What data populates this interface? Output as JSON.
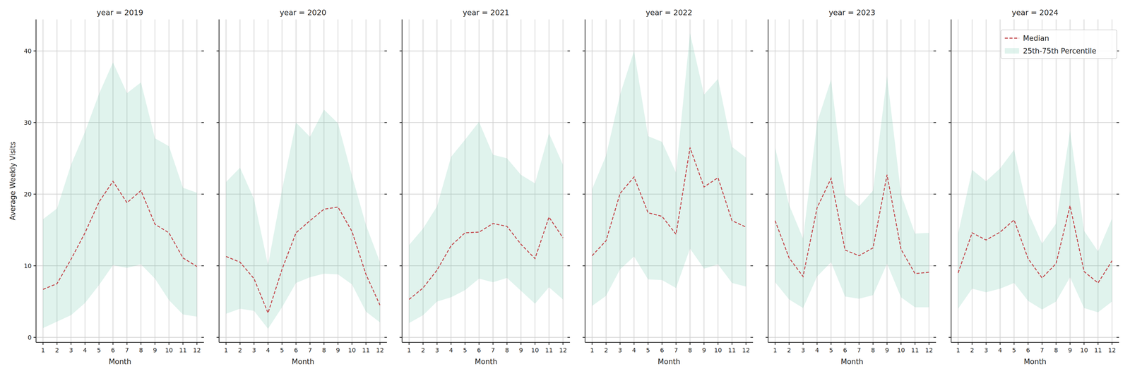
{
  "chart_data": [
    {
      "type": "line",
      "title": "year = 2019",
      "x_label": "Month",
      "y_label": "Average Weekly Visits",
      "x": [
        1,
        2,
        3,
        4,
        5,
        6,
        7,
        8,
        9,
        10,
        11,
        12
      ],
      "xlim": [
        0.5,
        12.5
      ],
      "xticks": [
        1,
        2,
        3,
        4,
        5,
        6,
        7,
        8,
        9,
        10,
        11,
        12
      ],
      "ylim": [
        -0.7,
        44.4
      ],
      "yticks": [
        0,
        10,
        20,
        30,
        40
      ],
      "grid": true,
      "legend": false,
      "series": [
        {
          "name": "Median",
          "type": "line",
          "line_style": "dashed",
          "color": "#c44e52",
          "values": [
            6.7,
            7.5,
            10.9,
            14.6,
            18.9,
            21.8,
            18.8,
            20.5,
            15.8,
            14.6,
            11.1,
            9.9
          ]
        },
        {
          "name": "25th-75th Percentile",
          "type": "area",
          "color": "#66c2a5",
          "lower": [
            1.3,
            2.2,
            3.1,
            4.8,
            7.3,
            10.1,
            9.7,
            10.2,
            8.2,
            5.2,
            3.2,
            2.9
          ],
          "upper": [
            16.5,
            18.0,
            24.1,
            28.7,
            34.0,
            38.4,
            34.1,
            35.6,
            27.8,
            26.7,
            20.9,
            20.2
          ]
        }
      ]
    },
    {
      "type": "line",
      "title": "year = 2020",
      "x_label": "Month",
      "x": [
        1,
        2,
        3,
        4,
        5,
        6,
        7,
        8,
        9,
        10,
        11,
        12
      ],
      "xlim": [
        0.5,
        12.5
      ],
      "xticks": [
        1,
        2,
        3,
        4,
        5,
        6,
        7,
        8,
        9,
        10,
        11,
        12
      ],
      "ylim": [
        -0.7,
        44.4
      ],
      "yticks": [
        0,
        10,
        20,
        30,
        40
      ],
      "grid": true,
      "legend": false,
      "tick_labels": "x",
      "series": [
        {
          "name": "Median",
          "type": "line",
          "line_style": "dashed",
          "color": "#c44e52",
          "values": [
            11.3,
            10.5,
            8.2,
            3.4,
            9.5,
            14.6,
            16.3,
            17.9,
            18.2,
            14.8,
            8.8,
            4.5
          ]
        },
        {
          "name": "25th-75th Percentile",
          "type": "area",
          "color": "#66c2a5",
          "lower": [
            3.3,
            4.0,
            3.7,
            1.2,
            4.2,
            7.6,
            8.4,
            8.9,
            8.8,
            7.4,
            3.6,
            2.1
          ],
          "upper": [
            21.7,
            23.7,
            19.3,
            10.1,
            20.6,
            30.0,
            28.0,
            31.8,
            29.9,
            22.6,
            15.7,
            10.5
          ]
        }
      ]
    },
    {
      "type": "line",
      "title": "year = 2021",
      "x_label": "Month",
      "x": [
        1,
        2,
        3,
        4,
        5,
        6,
        7,
        8,
        9,
        10,
        11,
        12
      ],
      "xlim": [
        0.5,
        12.5
      ],
      "xticks": [
        1,
        2,
        3,
        4,
        5,
        6,
        7,
        8,
        9,
        10,
        11,
        12
      ],
      "ylim": [
        -0.7,
        44.4
      ],
      "yticks": [
        0,
        10,
        20,
        30,
        40
      ],
      "grid": true,
      "legend": false,
      "tick_labels": "x",
      "series": [
        {
          "name": "Median",
          "type": "line",
          "line_style": "dashed",
          "color": "#c44e52",
          "values": [
            5.3,
            6.9,
            9.4,
            12.8,
            14.6,
            14.7,
            15.9,
            15.5,
            13.0,
            11.0,
            16.8,
            13.9
          ]
        },
        {
          "name": "25th-75th Percentile",
          "type": "area",
          "color": "#66c2a5",
          "lower": [
            2.0,
            3.1,
            5.0,
            5.6,
            6.6,
            8.2,
            7.7,
            8.3,
            6.5,
            4.7,
            7.0,
            5.3
          ],
          "upper": [
            12.9,
            15.2,
            18.3,
            25.2,
            27.6,
            30.1,
            25.5,
            25.0,
            22.7,
            21.5,
            28.5,
            24.1
          ]
        }
      ]
    },
    {
      "type": "line",
      "title": "year = 2022",
      "x_label": "Month",
      "x": [
        1,
        2,
        3,
        4,
        5,
        6,
        7,
        8,
        9,
        10,
        11,
        12
      ],
      "xlim": [
        0.5,
        12.5
      ],
      "xticks": [
        1,
        2,
        3,
        4,
        5,
        6,
        7,
        8,
        9,
        10,
        11,
        12
      ],
      "ylim": [
        -0.7,
        44.4
      ],
      "yticks": [
        0,
        10,
        20,
        30,
        40
      ],
      "grid": true,
      "legend": false,
      "tick_labels": "x",
      "series": [
        {
          "name": "Median",
          "type": "line",
          "line_style": "dashed",
          "color": "#c44e52",
          "values": [
            11.4,
            13.5,
            20.1,
            22.4,
            17.4,
            16.9,
            14.4,
            26.5,
            21.0,
            22.3,
            16.3,
            15.4
          ]
        },
        {
          "name": "25th-75th Percentile",
          "type": "area",
          "color": "#66c2a5",
          "lower": [
            4.4,
            5.8,
            9.5,
            11.3,
            8.1,
            8.0,
            6.9,
            12.4,
            9.6,
            10.2,
            7.6,
            7.1
          ],
          "upper": [
            20.7,
            25.4,
            33.9,
            40.0,
            28.1,
            27.3,
            23.0,
            42.5,
            33.9,
            36.1,
            26.6,
            25.1
          ]
        }
      ]
    },
    {
      "type": "line",
      "title": "year = 2023",
      "x_label": "Month",
      "x": [
        1,
        2,
        3,
        4,
        5,
        6,
        7,
        8,
        9,
        10,
        11,
        12
      ],
      "xlim": [
        0.5,
        12.5
      ],
      "xticks": [
        1,
        2,
        3,
        4,
        5,
        6,
        7,
        8,
        9,
        10,
        11,
        12
      ],
      "ylim": [
        -0.7,
        44.4
      ],
      "yticks": [
        0,
        10,
        20,
        30,
        40
      ],
      "grid": true,
      "legend": false,
      "tick_labels": "x",
      "series": [
        {
          "name": "Median",
          "type": "line",
          "line_style": "dashed",
          "color": "#c44e52",
          "values": [
            16.3,
            11.1,
            8.5,
            18.1,
            22.2,
            12.2,
            11.4,
            12.5,
            22.7,
            12.3,
            8.9,
            9.1
          ]
        },
        {
          "name": "25th-75th Percentile",
          "type": "area",
          "color": "#66c2a5",
          "lower": [
            7.7,
            5.3,
            4.1,
            8.5,
            10.5,
            5.7,
            5.4,
            5.9,
            10.3,
            5.6,
            4.2,
            4.2
          ],
          "upper": [
            26.5,
            18.5,
            13.8,
            30.0,
            36.0,
            19.9,
            18.3,
            20.5,
            36.5,
            20.0,
            14.5,
            14.6
          ]
        }
      ]
    },
    {
      "type": "line",
      "title": "year = 2024",
      "x_label": "Month",
      "x": [
        1,
        2,
        3,
        4,
        5,
        6,
        7,
        8,
        9,
        10,
        11,
        12
      ],
      "xlim": [
        0.5,
        12.5
      ],
      "xticks": [
        1,
        2,
        3,
        4,
        5,
        6,
        7,
        8,
        9,
        10,
        11,
        12
      ],
      "ylim": [
        -0.7,
        44.4
      ],
      "yticks": [
        0,
        10,
        20,
        30,
        40
      ],
      "grid": true,
      "legend": "upper right",
      "tick_labels": "x",
      "series": [
        {
          "name": "Median",
          "type": "line",
          "line_style": "dashed",
          "color": "#c44e52",
          "values": [
            9.0,
            14.6,
            13.6,
            14.7,
            16.4,
            11.0,
            8.3,
            10.3,
            18.4,
            9.2,
            7.6,
            10.7
          ]
        },
        {
          "name": "25th-75th Percentile",
          "type": "area",
          "color": "#66c2a5",
          "lower": [
            4.0,
            6.8,
            6.3,
            6.8,
            7.6,
            5.1,
            3.9,
            5.0,
            8.4,
            4.1,
            3.5,
            5.0
          ],
          "upper": [
            14.5,
            23.4,
            21.8,
            23.6,
            26.2,
            17.5,
            13.1,
            15.9,
            28.9,
            14.9,
            12.0,
            16.6
          ]
        }
      ]
    }
  ]
}
